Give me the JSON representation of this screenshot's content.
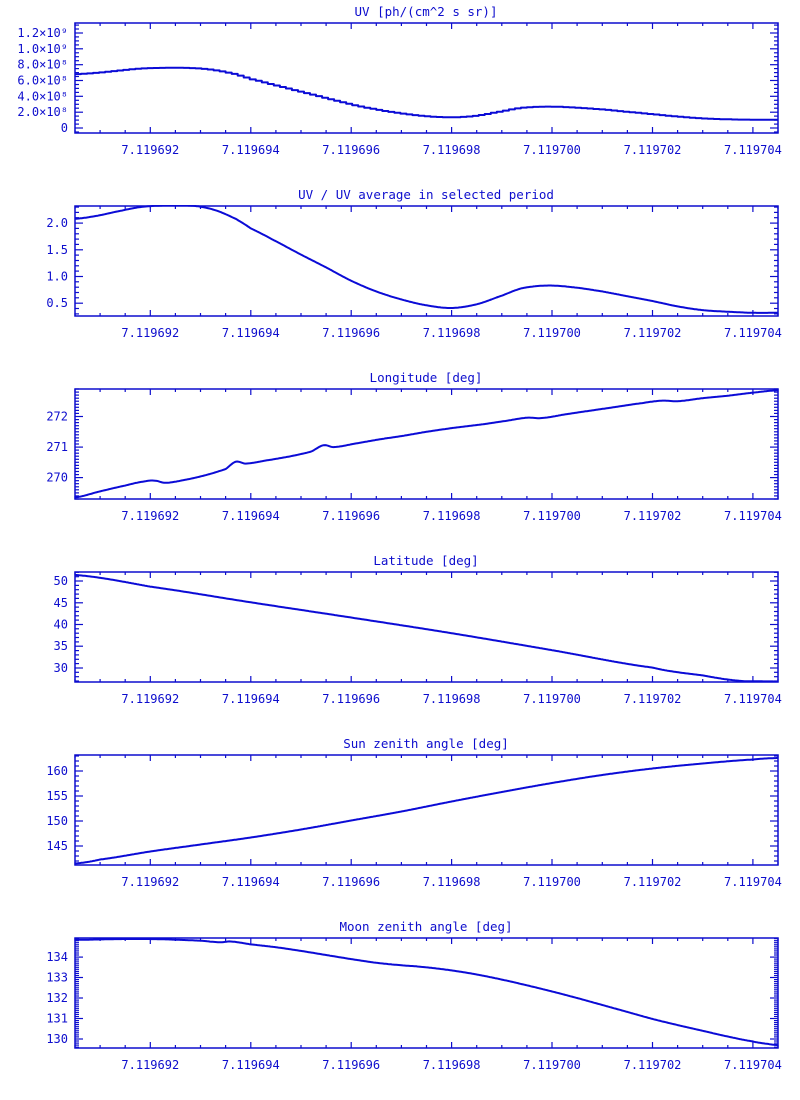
{
  "page": {
    "background": "#ffffff",
    "accent_color": "#0d0dcd",
    "description": "Six stacked time-series plots, blue on white"
  },
  "x_axis": {
    "xlim": [
      7.1196905,
      7.1197045
    ],
    "major_ticks": [
      7.119692,
      7.119694,
      7.119696,
      7.119698,
      7.1197,
      7.119702,
      7.119704
    ],
    "major_labels": [
      "7.119692",
      "7.119694",
      "7.119696",
      "7.119698",
      "7.119700",
      "7.119702",
      "7.119704"
    ],
    "minor_step": 5e-07
  },
  "chart_data": [
    {
      "type": "line",
      "mode": "step",
      "step_bin": 1.2e-07,
      "title": "UV [ph/(cm^2 s sr)]",
      "xlabel": "",
      "ylabel": "",
      "ylim": [
        -63000000.0,
        1326000000.0
      ],
      "y_major_ticks": [
        {
          "value": 0,
          "label": "0"
        },
        {
          "value": 200000000.0,
          "label": "2.0×10⁸"
        },
        {
          "value": 400000000.0,
          "label": "4.0×10⁸"
        },
        {
          "value": 600000000.0,
          "label": "6.0×10⁸"
        },
        {
          "value": 800000000.0,
          "label": "8.0×10⁸"
        },
        {
          "value": 1000000000.0,
          "label": "1.0×10⁹"
        },
        {
          "value": 1200000000.0,
          "label": "1.2×10⁹"
        }
      ],
      "y_minor_step": 50000000.0,
      "points": [
        [
          7.1196905,
          680000000.0
        ],
        [
          7.1196909,
          695000000.0
        ],
        [
          7.1196913,
          720000000.0
        ],
        [
          7.1196918,
          750000000.0
        ],
        [
          7.1196923,
          760000000.0
        ],
        [
          7.1196929,
          755000000.0
        ],
        [
          7.1196933,
          730000000.0
        ],
        [
          7.1196937,
          680000000.0
        ],
        [
          7.119694,
          620000000.0
        ],
        [
          7.1196945,
          540000000.0
        ],
        [
          7.119695,
          460000000.0
        ],
        [
          7.1196955,
          380000000.0
        ],
        [
          7.119696,
          300000000.0
        ],
        [
          7.1196965,
          235000000.0
        ],
        [
          7.119697,
          185000000.0
        ],
        [
          7.1196975,
          150000000.0
        ],
        [
          7.119698,
          135000000.0
        ],
        [
          7.1196985,
          155000000.0
        ],
        [
          7.119699,
          210000000.0
        ],
        [
          7.1196994,
          255000000.0
        ],
        [
          7.1196999,
          270000000.0
        ],
        [
          7.1197004,
          260000000.0
        ],
        [
          7.119701,
          235000000.0
        ],
        [
          7.1197015,
          205000000.0
        ],
        [
          7.119702,
          175000000.0
        ],
        [
          7.1197025,
          145000000.0
        ],
        [
          7.119703,
          122000000.0
        ],
        [
          7.1197035,
          110000000.0
        ],
        [
          7.119704,
          105000000.0
        ],
        [
          7.1197045,
          105000000.0
        ]
      ]
    },
    {
      "type": "line",
      "mode": "line",
      "title": "UV / UV average in selected period",
      "xlabel": "",
      "ylabel": "",
      "ylim": [
        0.26,
        2.32
      ],
      "y_major_ticks": [
        {
          "value": 0.5,
          "label": "0.5"
        },
        {
          "value": 1.0,
          "label": "1.0"
        },
        {
          "value": 1.5,
          "label": "1.5"
        },
        {
          "value": 2.0,
          "label": "2.0"
        }
      ],
      "y_minor_step": 0.1,
      "points": [
        [
          7.1196905,
          2.08
        ],
        [
          7.1196909,
          2.13
        ],
        [
          7.1196913,
          2.21
        ],
        [
          7.1196918,
          2.3
        ],
        [
          7.1196923,
          2.33
        ],
        [
          7.1196929,
          2.32
        ],
        [
          7.1196933,
          2.24
        ],
        [
          7.1196937,
          2.08
        ],
        [
          7.119694,
          1.9
        ],
        [
          7.1196945,
          1.66
        ],
        [
          7.119695,
          1.41
        ],
        [
          7.1196955,
          1.17
        ],
        [
          7.119696,
          0.92
        ],
        [
          7.1196965,
          0.72
        ],
        [
          7.119697,
          0.57
        ],
        [
          7.1196975,
          0.46
        ],
        [
          7.119698,
          0.41
        ],
        [
          7.1196985,
          0.48
        ],
        [
          7.119699,
          0.64
        ],
        [
          7.1196994,
          0.78
        ],
        [
          7.1196999,
          0.83
        ],
        [
          7.1197004,
          0.8
        ],
        [
          7.119701,
          0.72
        ],
        [
          7.1197015,
          0.63
        ],
        [
          7.119702,
          0.54
        ],
        [
          7.1197025,
          0.44
        ],
        [
          7.119703,
          0.37
        ],
        [
          7.1197035,
          0.34
        ],
        [
          7.119704,
          0.32
        ],
        [
          7.1197045,
          0.32
        ]
      ]
    },
    {
      "type": "line",
      "mode": "line",
      "title": "Longitude [deg]",
      "xlabel": "",
      "ylabel": "",
      "ylim": [
        269.3,
        272.9
      ],
      "y_major_ticks": [
        {
          "value": 270,
          "label": "270"
        },
        {
          "value": 271,
          "label": "271"
        },
        {
          "value": 272,
          "label": "272"
        }
      ],
      "y_minor_step": 0.1,
      "points": [
        [
          7.1196905,
          269.35
        ],
        [
          7.119691,
          269.55
        ],
        [
          7.1196915,
          269.74
        ],
        [
          7.1196919,
          269.88
        ],
        [
          7.1196921,
          269.9
        ],
        [
          7.1196923,
          269.83
        ],
        [
          7.1196927,
          269.93
        ],
        [
          7.1196931,
          270.08
        ],
        [
          7.1196935,
          270.28
        ],
        [
          7.1196937,
          270.52
        ],
        [
          7.1196939,
          270.46
        ],
        [
          7.1196943,
          270.56
        ],
        [
          7.1196948,
          270.7
        ],
        [
          7.1196952,
          270.85
        ],
        [
          7.11969545,
          271.06
        ],
        [
          7.11969565,
          271.0
        ],
        [
          7.1196961,
          271.12
        ],
        [
          7.1196966,
          271.26
        ],
        [
          7.119697,
          271.36
        ],
        [
          7.1196975,
          271.5
        ],
        [
          7.119698,
          271.62
        ],
        [
          7.1196986,
          271.74
        ],
        [
          7.1196991,
          271.86
        ],
        [
          7.1196995,
          271.96
        ],
        [
          7.1196998,
          271.95
        ],
        [
          7.1197003,
          272.08
        ],
        [
          7.1197008,
          272.2
        ],
        [
          7.1197013,
          272.32
        ],
        [
          7.1197018,
          272.44
        ],
        [
          7.1197022,
          272.52
        ],
        [
          7.1197025,
          272.5
        ],
        [
          7.119703,
          272.6
        ],
        [
          7.1197035,
          272.68
        ],
        [
          7.119704,
          272.78
        ],
        [
          7.1197045,
          272.86
        ]
      ]
    },
    {
      "type": "line",
      "mode": "line",
      "title": "Latitude [deg]",
      "xlabel": "",
      "ylabel": "",
      "ylim": [
        26.78,
        52.07
      ],
      "y_major_ticks": [
        {
          "value": 30,
          "label": "30"
        },
        {
          "value": 35,
          "label": "35"
        },
        {
          "value": 40,
          "label": "40"
        },
        {
          "value": 45,
          "label": "45"
        },
        {
          "value": 50,
          "label": "50"
        }
      ],
      "y_minor_step": 1,
      "points": [
        [
          7.1196905,
          51.4
        ],
        [
          7.119692,
          48.7
        ],
        [
          7.119694,
          45.1
        ],
        [
          7.119696,
          41.6
        ],
        [
          7.119698,
          38.0
        ],
        [
          7.1197,
          34.1
        ],
        [
          7.119702,
          30.1
        ],
        [
          7.119703,
          28.3
        ],
        [
          7.1197037,
          27.1
        ],
        [
          7.1197041,
          26.95
        ],
        [
          7.1197045,
          26.9
        ]
      ]
    },
    {
      "type": "line",
      "mode": "line",
      "title": "Sun zenith angle [deg]",
      "xlabel": "",
      "ylabel": "",
      "ylim": [
        141.2,
        163.2
      ],
      "y_major_ticks": [
        {
          "value": 145,
          "label": "145"
        },
        {
          "value": 150,
          "label": "150"
        },
        {
          "value": 155,
          "label": "155"
        },
        {
          "value": 160,
          "label": "160"
        }
      ],
      "y_minor_step": 1,
      "points": [
        [
          7.1196905,
          141.5
        ],
        [
          7.119691,
          142.3
        ],
        [
          7.119692,
          143.9
        ],
        [
          7.119693,
          145.3
        ],
        [
          7.119694,
          146.7
        ],
        [
          7.119695,
          148.3
        ],
        [
          7.119696,
          150.1
        ],
        [
          7.119697,
          151.9
        ],
        [
          7.119698,
          153.9
        ],
        [
          7.119699,
          155.8
        ],
        [
          7.1197,
          157.6
        ],
        [
          7.119701,
          159.2
        ],
        [
          7.119702,
          160.5
        ],
        [
          7.119703,
          161.5
        ],
        [
          7.119704,
          162.3
        ],
        [
          7.1197045,
          162.6
        ]
      ]
    },
    {
      "type": "line",
      "mode": "line",
      "title": "Moon zenith angle [deg]",
      "xlabel": "",
      "ylabel": "",
      "ylim": [
        129.56,
        134.93
      ],
      "y_major_ticks": [
        {
          "value": 130,
          "label": "130"
        },
        {
          "value": 131,
          "label": "131"
        },
        {
          "value": 132,
          "label": "132"
        },
        {
          "value": 133,
          "label": "133"
        },
        {
          "value": 134,
          "label": "134"
        }
      ],
      "y_minor_step": 0.1,
      "points": [
        [
          7.1196905,
          134.84
        ],
        [
          7.1196915,
          134.88
        ],
        [
          7.1196922,
          134.87
        ],
        [
          7.119693,
          134.8
        ],
        [
          7.1196934,
          134.72
        ],
        [
          7.1196936,
          134.76
        ],
        [
          7.119694,
          134.62
        ],
        [
          7.1196945,
          134.48
        ],
        [
          7.119695,
          134.3
        ],
        [
          7.1196955,
          134.1
        ],
        [
          7.119696,
          133.9
        ],
        [
          7.1196965,
          133.72
        ],
        [
          7.119697,
          133.6
        ],
        [
          7.1196974,
          133.52
        ],
        [
          7.119698,
          133.35
        ],
        [
          7.1196985,
          133.15
        ],
        [
          7.119699,
          132.9
        ],
        [
          7.1196995,
          132.62
        ],
        [
          7.1197,
          132.32
        ],
        [
          7.1197005,
          132.0
        ],
        [
          7.119701,
          131.66
        ],
        [
          7.1197015,
          131.32
        ],
        [
          7.119702,
          130.98
        ],
        [
          7.1197025,
          130.68
        ],
        [
          7.119703,
          130.4
        ],
        [
          7.1197035,
          130.12
        ],
        [
          7.119704,
          129.88
        ],
        [
          7.1197043,
          129.76
        ],
        [
          7.1197045,
          129.7
        ]
      ]
    }
  ]
}
